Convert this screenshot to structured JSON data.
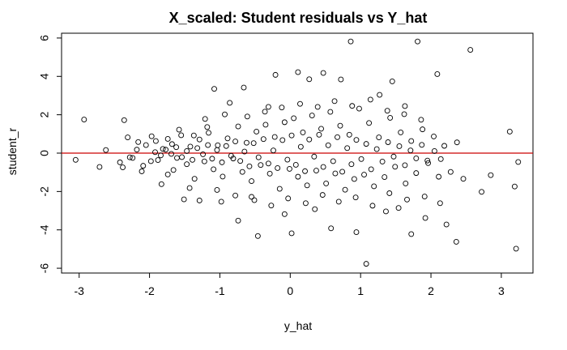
{
  "chart_data": {
    "type": "scatter",
    "title": "X_scaled: Student residuals vs Y_hat",
    "xlabel": "y_hat",
    "ylabel": "student_r",
    "xlim": [
      -3.25,
      3.45
    ],
    "ylim": [
      -6.25,
      6.25
    ],
    "x_ticks": [
      -3,
      -2,
      -1,
      0,
      1,
      2,
      3
    ],
    "y_ticks": [
      -6,
      -4,
      -2,
      0,
      2,
      4,
      6
    ],
    "x_tick_labels": [
      "-3",
      "-2",
      "-1",
      "0",
      "1",
      "2",
      "3"
    ],
    "y_tick_labels": [
      "-6",
      "-4",
      "-2",
      "0",
      "2",
      "4",
      "6"
    ],
    "grid": false,
    "marker": "open-circle",
    "reference_line": {
      "y": 0,
      "color": "#cc0000"
    },
    "colors": {
      "points": "#000000",
      "axes": "#000000",
      "reference_line": "#cc0000"
    },
    "series": [
      {
        "values": [
          {
            "x": -3.05,
            "y": -0.35
          },
          {
            "x": -2.93,
            "y": 1.75
          },
          {
            "x": -2.71,
            "y": -0.72
          },
          {
            "x": -2.62,
            "y": 0.16
          },
          {
            "x": -2.42,
            "y": -0.48
          },
          {
            "x": -2.36,
            "y": 1.72
          },
          {
            "x": -2.31,
            "y": 0.82
          },
          {
            "x": -2.24,
            "y": -0.25
          },
          {
            "x": -2.18,
            "y": 0.18
          },
          {
            "x": -2.11,
            "y": -0.95
          },
          {
            "x": -2.05,
            "y": 0.42
          },
          {
            "x": -1.98,
            "y": -0.42
          },
          {
            "x": -1.91,
            "y": 0.63
          },
          {
            "x": -1.83,
            "y": -1.62
          },
          {
            "x": -1.74,
            "y": 0.74
          },
          {
            "x": -1.66,
            "y": -0.88
          },
          {
            "x": -1.58,
            "y": 1.22
          },
          {
            "x": -1.51,
            "y": -2.41
          },
          {
            "x": -1.43,
            "y": -1.82
          },
          {
            "x": -1.37,
            "y": 0.92
          },
          {
            "x": -1.29,
            "y": -2.47
          },
          {
            "x": -1.18,
            "y": 1.36
          },
          {
            "x": -1.08,
            "y": 3.35
          },
          {
            "x": -0.98,
            "y": -2.53
          },
          {
            "x": -0.86,
            "y": 2.62
          },
          {
            "x": -0.74,
            "y": -3.52
          },
          {
            "x": -0.66,
            "y": 3.42
          },
          {
            "x": -0.55,
            "y": -2.28
          },
          {
            "x": -0.46,
            "y": -4.32
          },
          {
            "x": -0.31,
            "y": 2.41
          },
          {
            "x": -0.21,
            "y": 4.08
          },
          {
            "x": -0.08,
            "y": -3.18
          },
          {
            "x": 0.02,
            "y": -4.18
          },
          {
            "x": 0.11,
            "y": 4.22
          },
          {
            "x": 0.27,
            "y": 3.85
          },
          {
            "x": 0.35,
            "y": -2.92
          },
          {
            "x": 0.47,
            "y": 4.18
          },
          {
            "x": 0.58,
            "y": -3.92
          },
          {
            "x": 0.72,
            "y": 3.84
          },
          {
            "x": 0.86,
            "y": 5.82
          },
          {
            "x": 0.94,
            "y": -4.12
          },
          {
            "x": 1.08,
            "y": -5.77
          },
          {
            "x": 1.27,
            "y": 3.04
          },
          {
            "x": 1.36,
            "y": -3.04
          },
          {
            "x": 1.45,
            "y": 3.74
          },
          {
            "x": 1.54,
            "y": -2.86
          },
          {
            "x": 1.63,
            "y": 2.45
          },
          {
            "x": 1.72,
            "y": -4.22
          },
          {
            "x": 1.81,
            "y": 5.82
          },
          {
            "x": 1.92,
            "y": -3.38
          },
          {
            "x": 2.09,
            "y": 4.12
          },
          {
            "x": 2.22,
            "y": -3.72
          },
          {
            "x": 2.36,
            "y": -4.62
          },
          {
            "x": 2.56,
            "y": 5.38
          },
          {
            "x": 2.72,
            "y": -2.02
          },
          {
            "x": 2.85,
            "y": -1.15
          },
          {
            "x": 3.12,
            "y": 1.12
          },
          {
            "x": 3.21,
            "y": -4.98
          },
          {
            "x": 3.24,
            "y": -0.46
          },
          {
            "x": 3.19,
            "y": -1.74
          },
          {
            "x": -2.38,
            "y": -0.74
          },
          {
            "x": -2.28,
            "y": -0.22
          },
          {
            "x": -2.16,
            "y": 0.58
          },
          {
            "x": -2.09,
            "y": -0.66
          },
          {
            "x": -1.97,
            "y": 0.88
          },
          {
            "x": -1.88,
            "y": -0.36
          },
          {
            "x": -1.81,
            "y": 0.22
          },
          {
            "x": -1.74,
            "y": -1.11
          },
          {
            "x": -1.68,
            "y": 0.47
          },
          {
            "x": -1.61,
            "y": -0.25
          },
          {
            "x": -1.55,
            "y": 0.93
          },
          {
            "x": -1.47,
            "y": -0.58
          },
          {
            "x": -1.42,
            "y": 0.34
          },
          {
            "x": -1.36,
            "y": -1.34
          },
          {
            "x": -1.29,
            "y": 0.71
          },
          {
            "x": -1.22,
            "y": -0.43
          },
          {
            "x": -1.16,
            "y": 1.06
          },
          {
            "x": -1.09,
            "y": -0.84
          },
          {
            "x": -1.03,
            "y": 0.41
          },
          {
            "x": -0.96,
            "y": -1.22
          },
          {
            "x": -0.89,
            "y": 0.77
          },
          {
            "x": -0.81,
            "y": -0.28
          },
          {
            "x": -0.74,
            "y": 1.39
          },
          {
            "x": -0.68,
            "y": -0.98
          },
          {
            "x": -0.62,
            "y": 0.54
          },
          {
            "x": -0.55,
            "y": -1.46
          },
          {
            "x": -0.48,
            "y": 1.12
          },
          {
            "x": -0.42,
            "y": -0.62
          },
          {
            "x": -0.35,
            "y": 1.48
          },
          {
            "x": -0.29,
            "y": -1.07
          },
          {
            "x": -0.22,
            "y": 0.84
          },
          {
            "x": -0.15,
            "y": -1.86
          },
          {
            "x": -0.08,
            "y": 1.61
          },
          {
            "x": -0.01,
            "y": -0.82
          },
          {
            "x": 0.05,
            "y": 1.82
          },
          {
            "x": 0.11,
            "y": -1.23
          },
          {
            "x": 0.18,
            "y": 1.08
          },
          {
            "x": 0.24,
            "y": -1.68
          },
          {
            "x": 0.31,
            "y": 1.96
          },
          {
            "x": 0.37,
            "y": -0.91
          },
          {
            "x": 0.44,
            "y": 1.27
          },
          {
            "x": 0.51,
            "y": -1.58
          },
          {
            "x": 0.57,
            "y": 2.15
          },
          {
            "x": 0.64,
            "y": -1.06
          },
          {
            "x": 0.71,
            "y": 1.43
          },
          {
            "x": 0.78,
            "y": -1.91
          },
          {
            "x": 0.84,
            "y": 0.96
          },
          {
            "x": 0.91,
            "y": -1.35
          },
          {
            "x": 0.98,
            "y": 2.32
          },
          {
            "x": 1.05,
            "y": -1.12
          },
          {
            "x": 1.12,
            "y": 1.57
          },
          {
            "x": 1.19,
            "y": -1.73
          },
          {
            "x": 1.26,
            "y": 0.82
          },
          {
            "x": 1.34,
            "y": -1.25
          },
          {
            "x": 1.42,
            "y": 1.84
          },
          {
            "x": 1.49,
            "y": -0.71
          },
          {
            "x": 1.57,
            "y": 1.08
          },
          {
            "x": 1.64,
            "y": -1.58
          },
          {
            "x": 1.72,
            "y": 0.63
          },
          {
            "x": 1.79,
            "y": -1.04
          },
          {
            "x": 1.88,
            "y": 1.24
          },
          {
            "x": 1.96,
            "y": -0.52
          },
          {
            "x": 2.04,
            "y": 0.87
          },
          {
            "x": 2.11,
            "y": -1.23
          },
          {
            "x": 2.19,
            "y": 0.38
          },
          {
            "x": 2.28,
            "y": -0.98
          },
          {
            "x": 2.37,
            "y": 0.56
          },
          {
            "x": 2.46,
            "y": -1.34
          },
          {
            "x": -1.92,
            "y": 0.05
          },
          {
            "x": -1.84,
            "y": -0.12
          },
          {
            "x": -1.77,
            "y": 0.18
          },
          {
            "x": -1.69,
            "y": -0.04
          },
          {
            "x": -1.62,
            "y": 0.31
          },
          {
            "x": -1.54,
            "y": -0.21
          },
          {
            "x": -1.47,
            "y": 0.11
          },
          {
            "x": -1.39,
            "y": -0.35
          },
          {
            "x": -1.32,
            "y": 0.26
          },
          {
            "x": -1.24,
            "y": -0.06
          },
          {
            "x": -1.17,
            "y": 0.42
          },
          {
            "x": -1.11,
            "y": -0.29
          },
          {
            "x": -1.04,
            "y": 0.16
          },
          {
            "x": -0.97,
            "y": -0.48
          },
          {
            "x": -0.91,
            "y": 0.37
          },
          {
            "x": -0.84,
            "y": -0.14
          },
          {
            "x": -0.78,
            "y": 0.61
          },
          {
            "x": -0.71,
            "y": -0.41
          },
          {
            "x": -0.65,
            "y": 0.08
          },
          {
            "x": -0.58,
            "y": -0.69
          },
          {
            "x": -0.52,
            "y": 0.52
          },
          {
            "x": -0.45,
            "y": -0.22
          },
          {
            "x": -0.38,
            "y": 0.73
          },
          {
            "x": -0.31,
            "y": -0.54
          },
          {
            "x": -0.24,
            "y": 0.14
          },
          {
            "x": -0.18,
            "y": -0.78
          },
          {
            "x": -0.11,
            "y": 0.68
          },
          {
            "x": -0.04,
            "y": -0.34
          },
          {
            "x": 0.02,
            "y": 0.92
          },
          {
            "x": 0.08,
            "y": -0.61
          },
          {
            "x": 0.15,
            "y": 0.33
          },
          {
            "x": 0.21,
            "y": -0.94
          },
          {
            "x": 0.27,
            "y": 0.71
          },
          {
            "x": 0.34,
            "y": -0.18
          },
          {
            "x": 0.41,
            "y": 0.96
          },
          {
            "x": 0.47,
            "y": -0.72
          },
          {
            "x": 0.54,
            "y": 0.41
          },
          {
            "x": 0.61,
            "y": -0.42
          },
          {
            "x": 0.67,
            "y": 0.83
          },
          {
            "x": 0.74,
            "y": -0.97
          },
          {
            "x": 0.81,
            "y": 0.26
          },
          {
            "x": 0.87,
            "y": -0.58
          },
          {
            "x": 0.94,
            "y": 0.69
          },
          {
            "x": 1.01,
            "y": -0.31
          },
          {
            "x": 1.08,
            "y": 0.48
          },
          {
            "x": 1.15,
            "y": -0.84
          },
          {
            "x": 1.23,
            "y": 0.21
          },
          {
            "x": 1.31,
            "y": -0.44
          },
          {
            "x": 1.39,
            "y": 0.57
          },
          {
            "x": 1.47,
            "y": -0.18
          },
          {
            "x": 1.55,
            "y": 0.36
          },
          {
            "x": 1.63,
            "y": -0.63
          },
          {
            "x": 1.71,
            "y": 0.14
          },
          {
            "x": 1.79,
            "y": -0.27
          },
          {
            "x": 1.87,
            "y": 0.43
          },
          {
            "x": 1.95,
            "y": -0.39
          },
          {
            "x": 2.05,
            "y": 0.11
          },
          {
            "x": 2.14,
            "y": -0.31
          },
          {
            "x": -1.21,
            "y": 1.78
          },
          {
            "x": -0.93,
            "y": 2.02
          },
          {
            "x": -0.61,
            "y": 1.91
          },
          {
            "x": -0.36,
            "y": 2.16
          },
          {
            "x": -0.12,
            "y": 2.38
          },
          {
            "x": 0.14,
            "y": 2.57
          },
          {
            "x": 0.39,
            "y": 2.41
          },
          {
            "x": 0.63,
            "y": 2.71
          },
          {
            "x": 0.88,
            "y": 2.46
          },
          {
            "x": 1.14,
            "y": 2.79
          },
          {
            "x": 1.38,
            "y": 2.21
          },
          {
            "x": 1.62,
            "y": 2.03
          },
          {
            "x": 1.86,
            "y": 1.74
          },
          {
            "x": -1.04,
            "y": -1.92
          },
          {
            "x": -0.78,
            "y": -2.21
          },
          {
            "x": -0.51,
            "y": -2.45
          },
          {
            "x": -0.27,
            "y": -2.73
          },
          {
            "x": -0.03,
            "y": -2.36
          },
          {
            "x": 0.22,
            "y": -2.61
          },
          {
            "x": 0.46,
            "y": -2.18
          },
          {
            "x": 0.69,
            "y": -2.53
          },
          {
            "x": 0.93,
            "y": -2.31
          },
          {
            "x": 1.17,
            "y": -2.74
          },
          {
            "x": 1.41,
            "y": -2.09
          },
          {
            "x": 1.66,
            "y": -2.42
          },
          {
            "x": 1.91,
            "y": -2.26
          },
          {
            "x": 2.13,
            "y": -2.61
          }
        ]
      }
    ]
  }
}
